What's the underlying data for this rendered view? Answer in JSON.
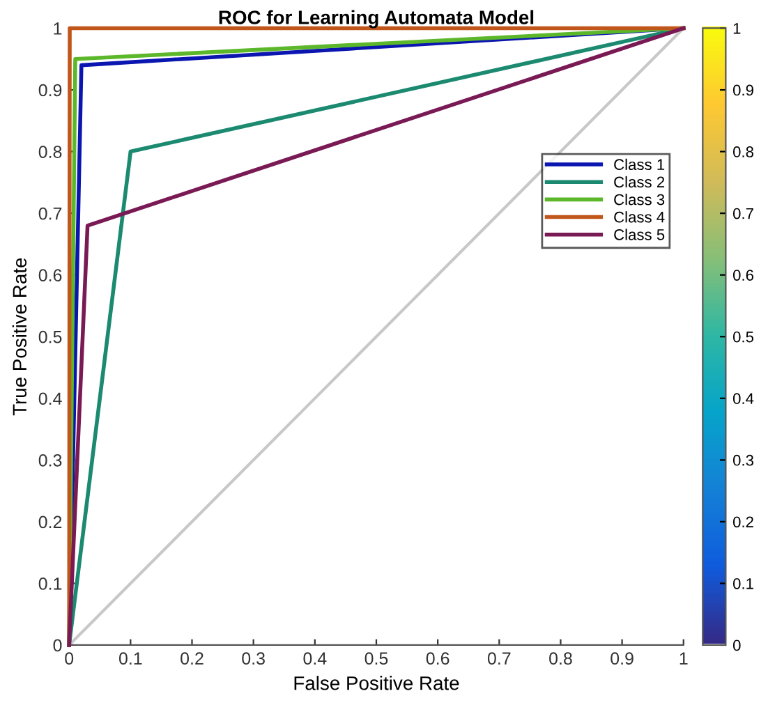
{
  "chart_data": {
    "type": "line",
    "title": "ROC for Learning Automata Model",
    "xlabel": "False Positive Rate",
    "ylabel": "True Positive Rate",
    "xlim": [
      0,
      1
    ],
    "ylim": [
      0,
      1
    ],
    "xticks": [
      0,
      0.1,
      0.2,
      0.3,
      0.4,
      0.5,
      0.6,
      0.7,
      0.8,
      0.9,
      1
    ],
    "yticks": [
      0,
      0.1,
      0.2,
      0.3,
      0.4,
      0.5,
      0.6,
      0.7,
      0.8,
      0.9,
      1
    ],
    "grid": false,
    "legend": "right",
    "marker": "none",
    "line_style": "solid",
    "clim": [
      0,
      1
    ],
    "cticks": [
      0,
      0.1,
      0.2,
      0.3,
      0.4,
      0.5,
      0.6,
      0.7,
      0.8,
      0.9,
      1
    ],
    "series": [
      {
        "color": "#c8c8c8",
        "x": [
          0,
          1
        ],
        "values": [
          0,
          1
        ]
      },
      {
        "name": "Class 1",
        "color": "#0b16b0",
        "x": [
          0,
          0.02,
          1
        ],
        "values": [
          0,
          0.94,
          1
        ]
      },
      {
        "name": "Class 2",
        "color": "#1b8a70",
        "x": [
          0,
          0.1,
          1
        ],
        "values": [
          0,
          0.8,
          1
        ]
      },
      {
        "name": "Class 3",
        "color": "#5cb82a",
        "x": [
          0,
          0.01,
          1
        ],
        "values": [
          0,
          0.95,
          1
        ]
      },
      {
        "name": "Class 4",
        "color": "#c0561a",
        "x": [
          0,
          0.001,
          1
        ],
        "values": [
          0,
          1,
          1
        ]
      },
      {
        "name": "Class 5",
        "color": "#7a1a55",
        "x": [
          0,
          0.03,
          1
        ],
        "values": [
          0,
          0.68,
          1
        ]
      }
    ]
  }
}
